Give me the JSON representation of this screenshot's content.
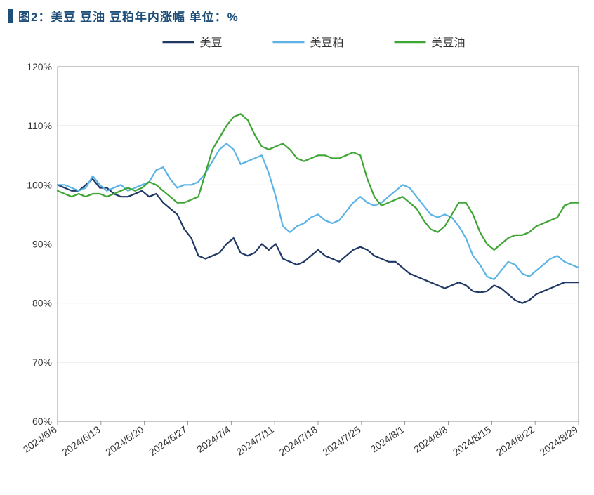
{
  "title": "图2：美豆 豆油 豆粕年内涨幅  单位：%",
  "title_color": "#1f4e79",
  "title_fontsize": 17,
  "title_marker_color": "#1f4e79",
  "chart": {
    "type": "line",
    "background_color": "#ffffff",
    "plot_border_color": "#808080",
    "grid_color": "#d9d9d9",
    "grid_width": 1,
    "axis_font_color": "#333333",
    "axis_fontsize": 14,
    "y_axis": {
      "min": 60,
      "max": 120,
      "tick_step": 10,
      "ticks": [
        "60%",
        "70%",
        "80%",
        "90%",
        "100%",
        "110%",
        "120%"
      ],
      "suffix": "%"
    },
    "x_axis": {
      "labels": [
        "2024/6/6",
        "2024/6/13",
        "2024/6/20",
        "2024/6/27",
        "2024/7/4",
        "2024/7/11",
        "2024/7/18",
        "2024/7/25",
        "2024/8/1",
        "2024/8/8",
        "2024/8/15",
        "2024/8/22",
        "2024/8/29"
      ],
      "label_rotation": -35,
      "label_fontsize": 14
    },
    "legend": {
      "position": "top-center",
      "fontsize": 16,
      "items": [
        {
          "label": "美豆",
          "color": "#1f3864",
          "marker": "line"
        },
        {
          "label": "美豆粕",
          "color": "#5bb4e5",
          "marker": "line"
        },
        {
          "label": "美豆油",
          "color": "#3fa535",
          "marker": "line"
        }
      ]
    },
    "line_width": 2.2,
    "series": [
      {
        "name": "美豆",
        "color": "#1f3864",
        "values": [
          100,
          99.5,
          99,
          99,
          100,
          101,
          99.5,
          99.5,
          98.5,
          98,
          98,
          98.5,
          99,
          98,
          98.5,
          97,
          96,
          95,
          92.5,
          91,
          88,
          87.5,
          88,
          88.5,
          90,
          91,
          88.5,
          88,
          88.5,
          90,
          89,
          90,
          87.5,
          87,
          86.5,
          87,
          88,
          89,
          88,
          87.5,
          87,
          88,
          89,
          89.5,
          89,
          88,
          87.5,
          87,
          87,
          86,
          85,
          84.5,
          84,
          83.5,
          83,
          82.5,
          83,
          83.5,
          83,
          82,
          81.8,
          82,
          83,
          82.5,
          81.5,
          80.5,
          80,
          80.5,
          81.5,
          82,
          82.5,
          83,
          83.5,
          83.5,
          83.5
        ]
      },
      {
        "name": "美豆粕",
        "color": "#5bb4e5",
        "values": [
          100,
          100,
          99.5,
          99,
          99.5,
          101.5,
          100,
          99,
          99.5,
          100,
          99,
          99.5,
          100,
          100.5,
          102.5,
          103,
          101,
          99.5,
          100,
          100,
          100.5,
          102,
          104,
          106,
          107,
          106,
          103.5,
          104,
          104.5,
          105,
          102,
          98,
          93,
          92,
          93,
          93.5,
          94.5,
          95,
          94,
          93.5,
          94,
          95.5,
          97,
          98,
          97,
          96.5,
          97,
          98,
          99,
          100,
          99.5,
          98,
          96.5,
          95,
          94.5,
          95,
          94.5,
          93,
          91,
          88,
          86.5,
          84.5,
          84,
          85.5,
          87,
          86.5,
          85,
          84.5,
          85.5,
          86.5,
          87.5,
          88,
          87,
          86.5,
          86
        ]
      },
      {
        "name": "美豆油",
        "color": "#3fa535",
        "values": [
          99,
          98.5,
          98,
          98.5,
          98,
          98.5,
          98.5,
          98,
          98.5,
          99,
          99.5,
          99,
          99.5,
          100.5,
          100,
          99,
          98,
          97,
          97,
          97.5,
          98,
          102,
          106,
          108,
          110,
          111.5,
          112,
          111,
          108.5,
          106.5,
          106,
          106.5,
          107,
          106,
          104.5,
          104,
          104.5,
          105,
          105,
          104.5,
          104.5,
          105,
          105.5,
          105,
          101,
          98,
          96.5,
          97,
          97.5,
          98,
          97,
          96,
          94,
          92.5,
          92,
          93,
          95,
          97,
          97,
          95,
          92,
          90,
          89,
          90,
          91,
          91.5,
          91.5,
          92,
          93,
          93.5,
          94,
          94.5,
          96.5,
          97,
          97
        ]
      }
    ]
  }
}
